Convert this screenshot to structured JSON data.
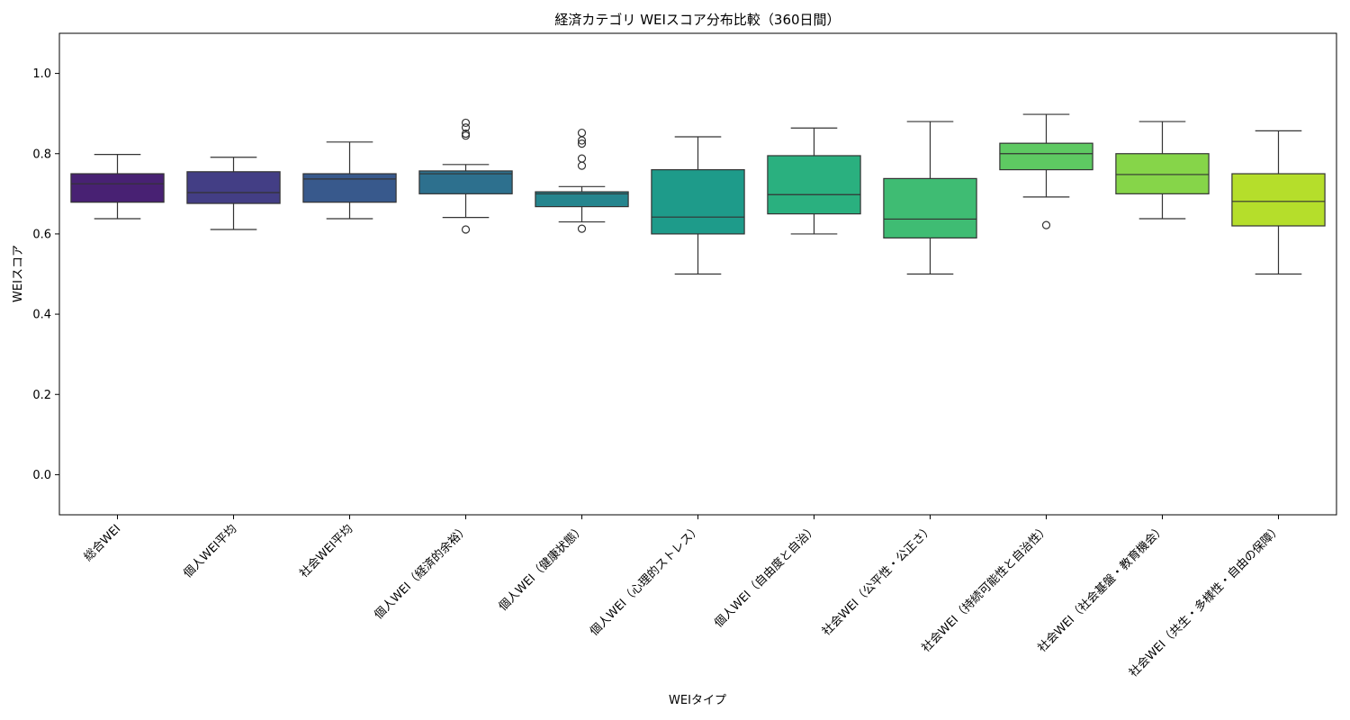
{
  "chart_data": {
    "type": "box",
    "title": "経済カテゴリ WEIスコア分布比較（360日間）",
    "xlabel": "WEIタイプ",
    "ylabel": "WEIスコア",
    "ylim": [
      -0.1,
      1.1
    ],
    "yticks": [
      0.0,
      0.2,
      0.4,
      0.6,
      0.8,
      1.0
    ],
    "ytick_labels": [
      "0.0",
      "0.2",
      "0.4",
      "0.6",
      "0.8",
      "1.0"
    ],
    "grid": false,
    "categories": [
      "総合WEI",
      "個人WEI平均",
      "社会WEI平均",
      "個人WEI（経済的余裕）",
      "個人WEI（健康状態）",
      "個人WEI（心理的ストレス）",
      "個人WEI（自由度と自治）",
      "社会WEI（公平性・公正さ）",
      "社会WEI（持続可能性と自治性）",
      "社会WEI（社会基盤・教育機会）",
      "社会WEI（共生・多様性・自由の保障）"
    ],
    "colors": [
      "#482173",
      "#433e85",
      "#38598c",
      "#2d708e",
      "#25858e",
      "#1e9b8a",
      "#2ab07f",
      "#3fbc73",
      "#5ec962",
      "#86d549",
      "#b5de2b"
    ],
    "boxes": [
      {
        "whislo": 0.638,
        "q1": 0.679,
        "med": 0.725,
        "q3": 0.75,
        "whishi": 0.798,
        "fliers": []
      },
      {
        "whislo": 0.611,
        "q1": 0.676,
        "med": 0.703,
        "q3": 0.755,
        "whishi": 0.791,
        "fliers": []
      },
      {
        "whislo": 0.638,
        "q1": 0.679,
        "med": 0.737,
        "q3": 0.75,
        "whishi": 0.829,
        "fliers": []
      },
      {
        "whislo": 0.641,
        "q1": 0.7,
        "med": 0.75,
        "q3": 0.757,
        "whishi": 0.773,
        "fliers": [
          0.611,
          0.845,
          0.85,
          0.865,
          0.877
        ]
      },
      {
        "whislo": 0.63,
        "q1": 0.668,
        "med": 0.7,
        "q3": 0.705,
        "whishi": 0.718,
        "fliers": [
          0.613,
          0.77,
          0.788,
          0.825,
          0.833,
          0.852
        ]
      },
      {
        "whislo": 0.5,
        "q1": 0.6,
        "med": 0.642,
        "q3": 0.76,
        "whishi": 0.842,
        "fliers": []
      },
      {
        "whislo": 0.6,
        "q1": 0.65,
        "med": 0.698,
        "q3": 0.795,
        "whishi": 0.864,
        "fliers": []
      },
      {
        "whislo": 0.5,
        "q1": 0.59,
        "med": 0.637,
        "q3": 0.738,
        "whishi": 0.88,
        "fliers": []
      },
      {
        "whislo": 0.692,
        "q1": 0.76,
        "med": 0.8,
        "q3": 0.826,
        "whishi": 0.898,
        "fliers": [
          0.622
        ]
      },
      {
        "whislo": 0.638,
        "q1": 0.7,
        "med": 0.748,
        "q3": 0.8,
        "whishi": 0.88,
        "fliers": []
      },
      {
        "whislo": 0.5,
        "q1": 0.62,
        "med": 0.681,
        "q3": 0.75,
        "whishi": 0.857,
        "fliers": []
      }
    ]
  }
}
